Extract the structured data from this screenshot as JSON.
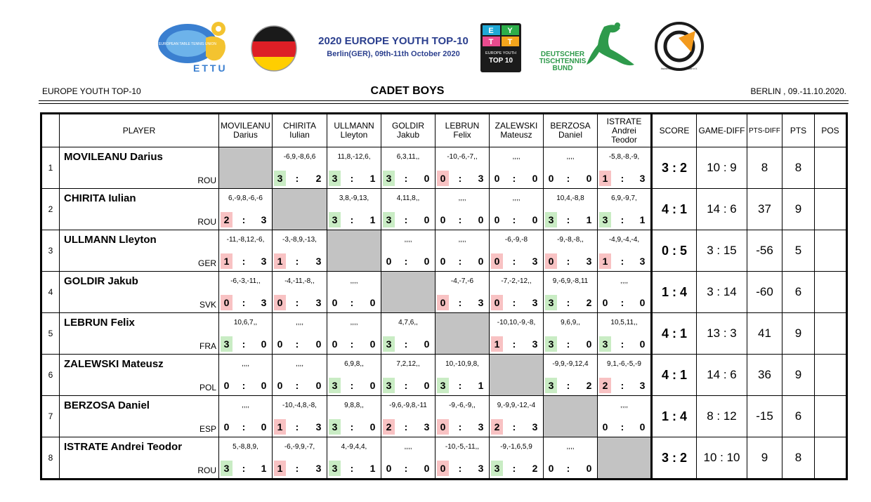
{
  "header": {
    "event_title": "2020 EUROPE YOUTH TOP-10",
    "event_subtitle": "Berlin(GER), 09th-11th October 2020",
    "left_label": "EUROPE YOUTH TOP-10",
    "category": "CADET BOYS",
    "right_label": "BERLIN , 09.-11.10.2020.",
    "logos": {
      "ettu_text": "ETTU",
      "ettu_ring": "EUROPEAN TABLE TENNIS UNION",
      "eyt_letters": [
        "E",
        "Y",
        "T",
        "T"
      ],
      "eyt_lines": [
        "EUROPE YOUTH",
        "TOP 10"
      ],
      "dttb_lines": [
        "DEUTSCHER",
        "TISCHTENNIS",
        "BUND"
      ],
      "club_ring": "tischtennis club berlin seaside e.V."
    },
    "colors": {
      "title_blue": "#2b3f8e",
      "win_green": "#c9ecc4",
      "loss_red": "#f8c2c3",
      "self_gray": "#c3c3c3"
    }
  },
  "columns": {
    "player": "PLAYER",
    "opponents": [
      [
        "MOVILEANU",
        "Darius"
      ],
      [
        "CHIRITA Iulian"
      ],
      [
        "ULLMANN",
        "Lleyton"
      ],
      [
        "GOLDIR Jakub"
      ],
      [
        "LEBRUN Felix"
      ],
      [
        "ZALEWSKI",
        "Mateusz"
      ],
      [
        "BERZOSA Daniel"
      ],
      [
        "ISTRATE Andrei",
        "Teodor"
      ]
    ],
    "score": "SCORE",
    "game_diff": "GAME-DIFF",
    "pts_diff": "PTS-DIFF",
    "pts": "PTS",
    "pos": "POS"
  },
  "rows": [
    {
      "num": "1",
      "name": "MOVILEANU Darius",
      "country": "ROU",
      "matches": [
        null,
        {
          "g": "-6,9,-8,6,6",
          "a": "3",
          "b": "2",
          "r": "w"
        },
        {
          "g": "11,8,-12,6,",
          "a": "3",
          "b": "1",
          "r": "w"
        },
        {
          "g": "6,3,11,,",
          "a": "3",
          "b": "0",
          "r": "w"
        },
        {
          "g": "-10,-6,-7,,",
          "a": "0",
          "b": "3",
          "r": "l"
        },
        {
          "g": ",,,,",
          "a": "0",
          "b": "0",
          "r": "n"
        },
        {
          "g": ",,,,",
          "a": "0",
          "b": "0",
          "r": "n"
        },
        {
          "g": "-5,8,-8,-9,",
          "a": "1",
          "b": "3",
          "r": "l"
        }
      ],
      "score": "3 : 2",
      "game_diff": "10 :  9",
      "pts_diff": "8",
      "pts": "8",
      "pos": ""
    },
    {
      "num": "2",
      "name": "CHIRITA Iulian",
      "country": "ROU",
      "matches": [
        {
          "g": "6,-9,8,-6,-6",
          "a": "2",
          "b": "3",
          "r": "l"
        },
        null,
        {
          "g": "3,8,-9,13,",
          "a": "3",
          "b": "1",
          "r": "w"
        },
        {
          "g": "4,11,8,,",
          "a": "3",
          "b": "0",
          "r": "w"
        },
        {
          "g": ",,,,",
          "a": "0",
          "b": "0",
          "r": "n"
        },
        {
          "g": ",,,,",
          "a": "0",
          "b": "0",
          "r": "n"
        },
        {
          "g": "10,4,-8,8",
          "a": "3",
          "b": "1",
          "r": "w"
        },
        {
          "g": "6,9,-9,7,",
          "a": "3",
          "b": "1",
          "r": "w"
        }
      ],
      "score": "4 : 1",
      "game_diff": "14 :  6",
      "pts_diff": "37",
      "pts": "9",
      "pos": ""
    },
    {
      "num": "3",
      "name": "ULLMANN Lleyton",
      "country": "GER",
      "matches": [
        {
          "g": "-11,-8,12,-6,",
          "a": "1",
          "b": "3",
          "r": "l"
        },
        {
          "g": "-3,-8,9,-13,",
          "a": "1",
          "b": "3",
          "r": "l"
        },
        null,
        {
          "g": ",,,,",
          "a": "0",
          "b": "0",
          "r": "n"
        },
        {
          "g": ",,,,",
          "a": "0",
          "b": "0",
          "r": "n"
        },
        {
          "g": "-6,-9,-8",
          "a": "0",
          "b": "3",
          "r": "l"
        },
        {
          "g": "-9,-8,-8,,",
          "a": "0",
          "b": "3",
          "r": "l"
        },
        {
          "g": "-4,9,-4,-4,",
          "a": "1",
          "b": "3",
          "r": "l"
        }
      ],
      "score": "0 : 5",
      "game_diff": "3  : 15",
      "pts_diff": "-56",
      "pts": "5",
      "pos": ""
    },
    {
      "num": "4",
      "name": "GOLDIR Jakub",
      "country": "SVK",
      "matches": [
        {
          "g": "-6,-3,-11,,",
          "a": "0",
          "b": "3",
          "r": "l"
        },
        {
          "g": "-4,-11,-8,,",
          "a": "0",
          "b": "3",
          "r": "l"
        },
        {
          "g": ",,,,",
          "a": "0",
          "b": "0",
          "r": "n"
        },
        null,
        {
          "g": "-4,-7,-6",
          "a": "0",
          "b": "3",
          "r": "l"
        },
        {
          "g": "-7,-2,-12,,",
          "a": "0",
          "b": "3",
          "r": "l"
        },
        {
          "g": "9,-6,9,-8,11",
          "a": "3",
          "b": "2",
          "r": "w"
        },
        {
          "g": ",,,,",
          "a": "0",
          "b": "0",
          "r": "n"
        }
      ],
      "score": "1 : 4",
      "game_diff": "3  : 14",
      "pts_diff": "-60",
      "pts": "6",
      "pos": ""
    },
    {
      "num": "5",
      "name": "LEBRUN Felix",
      "country": "FRA",
      "matches": [
        {
          "g": "10,6,7,,",
          "a": "3",
          "b": "0",
          "r": "w"
        },
        {
          "g": ",,,,",
          "a": "0",
          "b": "0",
          "r": "n"
        },
        {
          "g": ",,,,",
          "a": "0",
          "b": "0",
          "r": "n"
        },
        {
          "g": "4,7,6,,",
          "a": "3",
          "b": "0",
          "r": "w"
        },
        null,
        {
          "g": "-10,10,-9,-8,",
          "a": "1",
          "b": "3",
          "r": "l"
        },
        {
          "g": "9,6,9,,",
          "a": "3",
          "b": "0",
          "r": "w"
        },
        {
          "g": "10,5,11,,",
          "a": "3",
          "b": "0",
          "r": "w"
        }
      ],
      "score": "4 : 1",
      "game_diff": "13 :  3",
      "pts_diff": "41",
      "pts": "9",
      "pos": ""
    },
    {
      "num": "6",
      "name": "ZALEWSKI Mateusz",
      "country": "POL",
      "matches": [
        {
          "g": ",,,,",
          "a": "0",
          "b": "0",
          "r": "n"
        },
        {
          "g": ",,,,",
          "a": "0",
          "b": "0",
          "r": "n"
        },
        {
          "g": "6,9,8,,",
          "a": "3",
          "b": "0",
          "r": "w"
        },
        {
          "g": "7,2,12,,",
          "a": "3",
          "b": "0",
          "r": "w"
        },
        {
          "g": "10,-10,9,8,",
          "a": "3",
          "b": "1",
          "r": "w"
        },
        null,
        {
          "g": "-9,9,-9,12,4",
          "a": "3",
          "b": "2",
          "r": "w"
        },
        {
          "g": "9,1,-6,-5,-9",
          "a": "2",
          "b": "3",
          "r": "l"
        }
      ],
      "score": "4 : 1",
      "game_diff": "14 :  6",
      "pts_diff": "36",
      "pts": "9",
      "pos": ""
    },
    {
      "num": "7",
      "name": "BERZOSA Daniel",
      "country": "ESP",
      "matches": [
        {
          "g": ",,,,",
          "a": "0",
          "b": "0",
          "r": "n"
        },
        {
          "g": "-10,-4,8,-8,",
          "a": "1",
          "b": "3",
          "r": "l"
        },
        {
          "g": "9,8,8,,",
          "a": "3",
          "b": "0",
          "r": "w"
        },
        {
          "g": "-9,6,-9,8,-11",
          "a": "2",
          "b": "3",
          "r": "l"
        },
        {
          "g": "-9,-6,-9,,",
          "a": "0",
          "b": "3",
          "r": "l"
        },
        {
          "g": "9,-9,9,-12,-4",
          "a": "2",
          "b": "3",
          "r": "l"
        },
        null,
        {
          "g": ",,,,",
          "a": "0",
          "b": "0",
          "r": "n"
        }
      ],
      "score": "1 : 4",
      "game_diff": "8  : 12",
      "pts_diff": "-15",
      "pts": "6",
      "pos": ""
    },
    {
      "num": "8",
      "name": "ISTRATE Andrei Teodor",
      "country": "ROU",
      "matches": [
        {
          "g": "5,-8,8,9,",
          "a": "3",
          "b": "1",
          "r": "w"
        },
        {
          "g": "-6,-9,9,-7,",
          "a": "1",
          "b": "3",
          "r": "l"
        },
        {
          "g": "4,-9,4,4,",
          "a": "3",
          "b": "1",
          "r": "w"
        },
        {
          "g": ",,,,",
          "a": "0",
          "b": "0",
          "r": "n"
        },
        {
          "g": "-10,-5,-11,,",
          "a": "0",
          "b": "3",
          "r": "l"
        },
        {
          "g": "-9,-1,6,5,9",
          "a": "3",
          "b": "2",
          "r": "w"
        },
        {
          "g": ",,,,",
          "a": "0",
          "b": "0",
          "r": "n"
        },
        null
      ],
      "score": "3 : 2",
      "game_diff": "10 : 10",
      "pts_diff": "9",
      "pts": "8",
      "pos": ""
    }
  ]
}
